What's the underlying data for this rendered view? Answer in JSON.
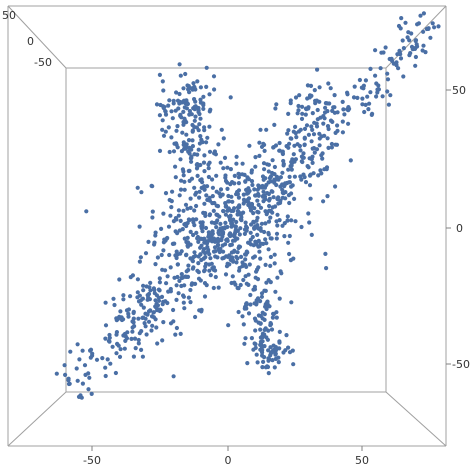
{
  "chart_data": {
    "type": "scatter",
    "title": "",
    "xlabel": "",
    "ylabel": "",
    "zlabel": "",
    "projection": "3d-box-viewed-from-top",
    "xlim": [
      -75,
      80
    ],
    "ylim": [
      -75,
      80
    ],
    "grid": false,
    "marker_color": "#4a6fa5",
    "x_ticks": [
      "-50",
      "0",
      "50"
    ],
    "y_ticks": [
      "-50",
      "0",
      "50"
    ],
    "z_ticks": [
      "50",
      "0",
      "-50"
    ],
    "clusters": [
      {
        "center": [
          0,
          0
        ],
        "spread": [
          13,
          13
        ],
        "count": 520,
        "along": "none"
      },
      {
        "from": [
          -60,
          -60
        ],
        "to": [
          78,
          77
        ],
        "count": 360,
        "along": "diagonal",
        "width": 4
      },
      {
        "center": [
          -15,
          45
        ],
        "spread": [
          5,
          7
        ],
        "count": 110,
        "along": "none"
      },
      {
        "center": [
          -12,
          28
        ],
        "spread": [
          5,
          6
        ],
        "count": 60,
        "along": "none"
      },
      {
        "center": [
          15,
          -45
        ],
        "spread": [
          4,
          4
        ],
        "count": 70,
        "along": "none"
      },
      {
        "center": [
          12,
          -30
        ],
        "spread": [
          4,
          6
        ],
        "count": 60,
        "along": "none"
      },
      {
        "center": [
          30,
          45
        ],
        "spread": [
          5,
          5
        ],
        "count": 45,
        "along": "none"
      },
      {
        "center": [
          -30,
          -30
        ],
        "spread": [
          7,
          8
        ],
        "count": 90,
        "along": "none"
      },
      {
        "center": [
          25,
          25
        ],
        "spread": [
          8,
          8
        ],
        "count": 90,
        "along": "none"
      }
    ],
    "point_count_approx": 1400
  }
}
